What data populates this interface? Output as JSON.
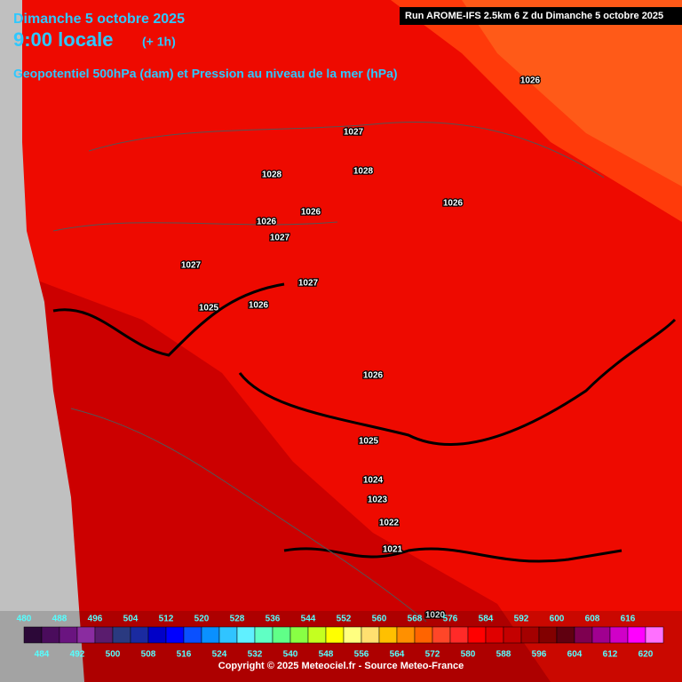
{
  "header": {
    "date": "Dimanche 5 octobre 2025",
    "time": "9:00 locale",
    "offset": "(+ 1h)",
    "title": "Geopotentiel 500hPa (dam) et Pression au niveau de la mer (hPa)",
    "run": "Run AROME-IFS 2.5km 6 Z du Dimanche 5 octobre 2025"
  },
  "isobar_labels": [
    "1026",
    "1027",
    "1028",
    "1028",
    "1026",
    "1026",
    "1026",
    "1027",
    "1027",
    "1027",
    "1025",
    "1026",
    "1026",
    "1025",
    "1024",
    "1023",
    "1022",
    "1021",
    "1020"
  ],
  "legend": {
    "upper_labels": [
      "480",
      "488",
      "496",
      "504",
      "512",
      "520",
      "528",
      "536",
      "544",
      "552",
      "560",
      "568",
      "576",
      "584",
      "592",
      "600",
      "608",
      "616"
    ],
    "lower_labels": [
      "484",
      "492",
      "500",
      "508",
      "516",
      "524",
      "532",
      "540",
      "548",
      "556",
      "564",
      "572",
      "580",
      "588",
      "596",
      "604",
      "612",
      "620"
    ],
    "colors": [
      "#2c0838",
      "#4a0c5c",
      "#6a1480",
      "#8a2ca0",
      "#5a1c6e",
      "#2a3a80",
      "#1a2aa0",
      "#0000c8",
      "#0000ff",
      "#0a50ff",
      "#0a90ff",
      "#30c4ff",
      "#60f0ff",
      "#60ffc4",
      "#60ff88",
      "#88ff44",
      "#c4ff20",
      "#ffff00",
      "#ffff80",
      "#ffe070",
      "#ffc000",
      "#ff9000",
      "#ff6400",
      "#ff4628",
      "#ff2a28",
      "#ff0000",
      "#e00000",
      "#c40000",
      "#a40000",
      "#820000",
      "#600010",
      "#7e0050",
      "#a00090",
      "#d000c8",
      "#ff00ff",
      "#ff70ff"
    ]
  },
  "footer": {
    "copyright": "Copyright © 2025 Meteociel.fr - Source Meteo-France"
  }
}
